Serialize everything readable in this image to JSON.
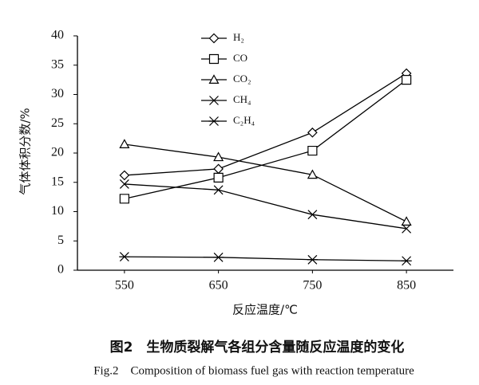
{
  "chart_data": {
    "type": "line",
    "x": [
      550,
      650,
      750,
      850
    ],
    "xlim": [
      500,
      900
    ],
    "xticks": [
      550,
      650,
      750,
      850
    ],
    "ylim": [
      0,
      40
    ],
    "yticks": [
      0,
      5,
      10,
      15,
      20,
      25,
      30,
      35,
      40
    ],
    "xlabel": "反应温度/℃",
    "ylabel": "气体体积分数/%",
    "legend": "upper-left",
    "series": [
      {
        "name": "H₂",
        "color": "#000000",
        "marker": "diamond",
        "values": [
          16.2,
          17.3,
          23.5,
          33.6
        ]
      },
      {
        "name": "CO",
        "color": "#000000",
        "marker": "square",
        "values": [
          12.2,
          15.8,
          20.4,
          32.5
        ]
      },
      {
        "name": "CO₂",
        "color": "#000000",
        "marker": "triangle",
        "values": [
          21.5,
          19.3,
          16.3,
          8.3
        ]
      },
      {
        "name": "CH₄",
        "color": "#000000",
        "marker": "x",
        "values": [
          14.7,
          13.7,
          9.5,
          7.1
        ]
      },
      {
        "name": "C₂H₄",
        "color": "#000000",
        "marker": "asterisk",
        "values": [
          2.3,
          2.2,
          1.8,
          1.6
        ]
      }
    ],
    "caption": "图2　生物质裂解气各组分含量随反应温度的变化",
    "caption_en": "Fig.2　Composition of biomass fuel gas with reaction temperature"
  }
}
